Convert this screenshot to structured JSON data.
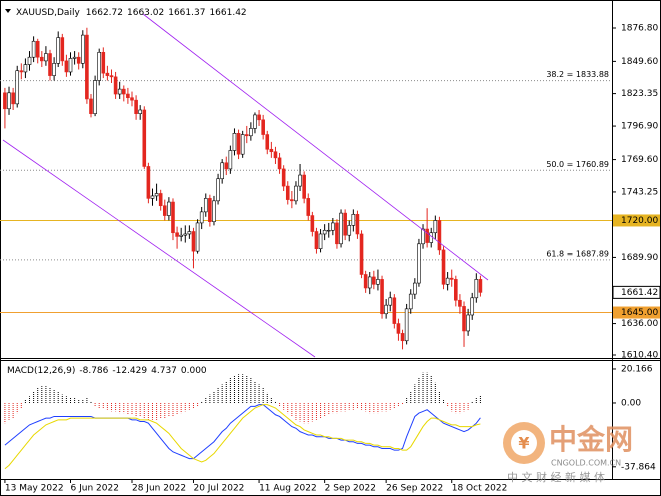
{
  "chart_data": [
    {
      "type": "candlestick",
      "title": "XAUUSD,Daily",
      "header_values": [
        1662.72,
        1663.02,
        1661.37,
        1661.42
      ],
      "open": [
        1824,
        1811,
        1824,
        1815,
        1842,
        1841,
        1847,
        1853,
        1866,
        1853,
        1850,
        1856,
        1838,
        1848,
        1869,
        1850,
        1841,
        1852,
        1853,
        1848,
        1871,
        1819,
        1807,
        1834,
        1857,
        1840,
        1838,
        1837,
        1823,
        1827,
        1823,
        1820,
        1818,
        1807,
        1810,
        1764,
        1738,
        1740,
        1742,
        1732,
        1724,
        1735,
        1710,
        1707,
        1708,
        1709,
        1711,
        1695,
        1718,
        1727,
        1738,
        1719,
        1736,
        1754,
        1767,
        1762,
        1777,
        1791,
        1774,
        1790,
        1789,
        1795,
        1806,
        1802,
        1790,
        1778,
        1776,
        1771,
        1762,
        1748,
        1737,
        1736,
        1748,
        1757,
        1738,
        1724,
        1711,
        1697,
        1709,
        1712,
        1712,
        1718,
        1701,
        1726,
        1708,
        1716,
        1725,
        1709,
        1676,
        1665,
        1674,
        1668,
        1672,
        1644,
        1651,
        1657,
        1636,
        1628,
        1622,
        1648,
        1660,
        1669,
        1701,
        1713,
        1702,
        1710,
        1720,
        1696,
        1668,
        1673,
        1672,
        1655,
        1650,
        1630,
        1643,
        1657,
        1672
      ],
      "high": [
        1828,
        1829,
        1828,
        1846,
        1848,
        1852,
        1858,
        1870,
        1868,
        1858,
        1862,
        1859,
        1853,
        1874,
        1872,
        1855,
        1857,
        1858,
        1857,
        1875,
        1877,
        1823,
        1838,
        1860,
        1861,
        1846,
        1843,
        1841,
        1833,
        1830,
        1828,
        1825,
        1822,
        1814,
        1813,
        1767,
        1746,
        1750,
        1745,
        1737,
        1739,
        1738,
        1715,
        1714,
        1716,
        1716,
        1714,
        1721,
        1731,
        1742,
        1741,
        1740,
        1758,
        1770,
        1772,
        1781,
        1795,
        1794,
        1793,
        1797,
        1800,
        1808,
        1810,
        1806,
        1793,
        1784,
        1780,
        1775,
        1765,
        1752,
        1744,
        1752,
        1766,
        1760,
        1742,
        1727,
        1714,
        1713,
        1717,
        1718,
        1722,
        1721,
        1729,
        1729,
        1720,
        1729,
        1728,
        1712,
        1679,
        1678,
        1679,
        1680,
        1675,
        1656,
        1662,
        1660,
        1640,
        1631,
        1652,
        1664,
        1673,
        1705,
        1717,
        1730,
        1714,
        1724,
        1723,
        1699,
        1678,
        1680,
        1675,
        1660,
        1654,
        1648,
        1661,
        1677,
        1675
      ],
      "low": [
        1795,
        1806,
        1810,
        1812,
        1835,
        1836,
        1842,
        1849,
        1848,
        1845,
        1846,
        1834,
        1834,
        1845,
        1846,
        1837,
        1838,
        1847,
        1843,
        1844,
        1815,
        1804,
        1805,
        1830,
        1836,
        1834,
        1832,
        1819,
        1819,
        1817,
        1815,
        1813,
        1802,
        1802,
        1762,
        1734,
        1732,
        1736,
        1728,
        1720,
        1720,
        1704,
        1697,
        1703,
        1702,
        1705,
        1681,
        1693,
        1713,
        1723,
        1715,
        1716,
        1733,
        1750,
        1757,
        1758,
        1773,
        1770,
        1771,
        1783,
        1785,
        1791,
        1797,
        1786,
        1774,
        1771,
        1766,
        1758,
        1744,
        1733,
        1730,
        1733,
        1744,
        1734,
        1720,
        1707,
        1693,
        1694,
        1704,
        1706,
        1708,
        1697,
        1698,
        1704,
        1703,
        1711,
        1705,
        1673,
        1661,
        1660,
        1664,
        1663,
        1640,
        1640,
        1646,
        1632,
        1622,
        1615,
        1619,
        1644,
        1656,
        1666,
        1697,
        1698,
        1698,
        1705,
        1692,
        1664,
        1663,
        1666,
        1650,
        1644,
        1617,
        1626,
        1639,
        1653,
        1658
      ],
      "close": [
        1811,
        1824,
        1815,
        1842,
        1841,
        1847,
        1853,
        1866,
        1853,
        1850,
        1856,
        1838,
        1848,
        1869,
        1850,
        1841,
        1852,
        1853,
        1848,
        1871,
        1819,
        1807,
        1834,
        1857,
        1840,
        1838,
        1837,
        1823,
        1827,
        1823,
        1820,
        1818,
        1807,
        1810,
        1764,
        1738,
        1740,
        1742,
        1732,
        1724,
        1735,
        1710,
        1707,
        1708,
        1709,
        1711,
        1695,
        1718,
        1727,
        1738,
        1719,
        1736,
        1754,
        1767,
        1762,
        1777,
        1791,
        1774,
        1790,
        1789,
        1795,
        1806,
        1802,
        1790,
        1778,
        1776,
        1771,
        1762,
        1748,
        1737,
        1736,
        1748,
        1757,
        1738,
        1724,
        1711,
        1697,
        1709,
        1712,
        1712,
        1718,
        1701,
        1726,
        1708,
        1716,
        1725,
        1709,
        1676,
        1665,
        1674,
        1668,
        1672,
        1644,
        1651,
        1657,
        1636,
        1628,
        1622,
        1648,
        1660,
        1669,
        1701,
        1713,
        1702,
        1710,
        1720,
        1696,
        1668,
        1673,
        1672,
        1655,
        1650,
        1630,
        1643,
        1657,
        1672,
        1661.42
      ],
      "up_fill": "#ffffff",
      "up_stroke": "#000000",
      "down_color": "#e3261f",
      "xlim": [
        -1.2,
        148.1
      ],
      "xticks": [
        {
          "value": 0,
          "label": "13 May 2022"
        },
        {
          "value": 16,
          "label": "6 Jun 2022"
        },
        {
          "value": 31,
          "label": "28 Jun 2022"
        },
        {
          "value": 46,
          "label": "20 Jul 2022"
        },
        {
          "value": 62,
          "label": "11 Aug 2022"
        },
        {
          "value": 78,
          "label": "2 Sep 2022"
        },
        {
          "value": 93,
          "label": "26 Sep 2022"
        },
        {
          "value": 109,
          "label": "18 Oct 2022"
        }
      ],
      "ylim": [
        1610.4,
        1888.2
      ],
      "yticks": [
        {
          "value": 1876.8,
          "label": "1876.80"
        },
        {
          "value": 1849.6,
          "label": "1849.60"
        },
        {
          "value": 1823.35,
          "label": "1823.35"
        },
        {
          "value": 1796.9,
          "label": "1796.90"
        },
        {
          "value": 1769.6,
          "label": "1769.60"
        },
        {
          "value": 1743.25,
          "label": "1743.25"
        },
        {
          "value": 1689.9,
          "label": "1689.90"
        },
        {
          "value": 1636,
          "label": "1636.00"
        },
        {
          "value": 1610.4,
          "label": "1610.40"
        }
      ],
      "fib_levels": [
        {
          "value": 1833.88,
          "label": "38.2 = 1833.88"
        },
        {
          "value": 1760.89,
          "label": "50.0 = 1760.89"
        },
        {
          "value": 1687.89,
          "label": "61.8 = 1687.89"
        }
      ],
      "fib_color": "#8c8c8c",
      "price_levels": [
        {
          "value": 1720,
          "label": "1720.00",
          "color": "#e6b422"
        },
        {
          "value": 1645,
          "label": "1645.00",
          "color": "#f0a030"
        }
      ],
      "current_price": 1661.42
    },
    {
      "type": "macd",
      "title": "MACD(12,26,9)",
      "header_values": [
        -8.786,
        -12.429,
        4.737,
        {
          "value": 0,
          "label": "0.000"
        }
      ],
      "histogram": {
        "up_color": "#000000",
        "down_color": "#e3261f",
        "values": [
          -12,
          -10,
          -9,
          -6,
          -3,
          2,
          4,
          7,
          9,
          10,
          10,
          9,
          8,
          7,
          5,
          4,
          3,
          3,
          2,
          2,
          3,
          1,
          -2,
          -3,
          -3,
          -4,
          -5,
          -5,
          -6,
          -6,
          -7,
          -7,
          -8,
          -8,
          -9,
          -10,
          -10,
          -10,
          -9,
          -9,
          -8,
          -8,
          -7,
          -6,
          -5,
          -4,
          -3,
          -2,
          1,
          3,
          5,
          7,
          9,
          11,
          13,
          15,
          16,
          17,
          17,
          16,
          15,
          13,
          11,
          9,
          6,
          3,
          1,
          -2,
          -4,
          -6,
          -8,
          -10,
          -11,
          -12,
          -12,
          -11,
          -10,
          -9,
          -8,
          -7,
          -6,
          -6,
          -5,
          -5,
          -4,
          -4,
          -3,
          -4,
          -5,
          -6,
          -6,
          -6,
          -5,
          -5,
          -4,
          -3,
          -2,
          -1,
          3,
          7,
          11,
          15,
          18,
          18,
          16,
          12,
          7,
          2,
          -2,
          -5,
          -6,
          -6,
          -5,
          -4,
          1,
          3,
          4.737
        ]
      },
      "lines": [
        {
          "color": "#1f3fff",
          "values": [
            -25,
            -23,
            -21,
            -19,
            -17,
            -15,
            -13,
            -12,
            -11,
            -10,
            -9,
            -9,
            -8,
            -8,
            -8,
            -8,
            -8,
            -8,
            -8,
            -8,
            -8,
            -8,
            -9,
            -9,
            -9,
            -9,
            -9,
            -9,
            -9,
            -9,
            -9,
            -10,
            -10,
            -11,
            -11,
            -12,
            -15,
            -18,
            -21,
            -24,
            -27,
            -29,
            -30,
            -31,
            -32,
            -33,
            -33,
            -31,
            -29,
            -27,
            -25,
            -23,
            -20,
            -17,
            -15,
            -12,
            -10,
            -8,
            -6,
            -4,
            -2,
            -2,
            -1,
            -1,
            -3,
            -5,
            -7,
            -8,
            -10,
            -12,
            -14,
            -15,
            -17,
            -18,
            -19,
            -19,
            -20,
            -20,
            -20,
            -21,
            -21,
            -21,
            -22,
            -22,
            -23,
            -23,
            -24,
            -24,
            -25,
            -25,
            -26,
            -26,
            -27,
            -27,
            -27,
            -28,
            -28,
            -27,
            -20,
            -14,
            -8,
            -6,
            -5,
            -4,
            -6,
            -8,
            -10,
            -12,
            -13,
            -14,
            -15,
            -16,
            -17,
            -16,
            -14,
            -12,
            -8.786
          ]
        },
        {
          "color": "#e8d800",
          "values": [
            -39,
            -37,
            -34,
            -31,
            -28,
            -25,
            -22,
            -19,
            -17,
            -15,
            -13,
            -12,
            -11,
            -10,
            -10,
            -10,
            -9,
            -9,
            -9,
            -9,
            -9,
            -9,
            -9,
            -9,
            -9,
            -9,
            -9,
            -9,
            -9,
            -9,
            -9,
            -9,
            -9,
            -10,
            -10,
            -10,
            -11,
            -12,
            -14,
            -16,
            -18,
            -21,
            -24,
            -27,
            -29,
            -31,
            -33,
            -34,
            -35,
            -34,
            -32,
            -30,
            -27,
            -24,
            -21,
            -18,
            -15,
            -12,
            -9,
            -7,
            -5,
            -3,
            -2,
            -1,
            -1,
            -2,
            -3,
            -5,
            -7,
            -9,
            -11,
            -13,
            -14,
            -16,
            -17,
            -18,
            -19,
            -19,
            -20,
            -20,
            -21,
            -21,
            -21,
            -22,
            -22,
            -22,
            -23,
            -23,
            -24,
            -24,
            -25,
            -25,
            -26,
            -26,
            -26,
            -27,
            -27,
            -28,
            -28,
            -26,
            -22,
            -18,
            -14,
            -11,
            -9,
            -9,
            -10,
            -11,
            -12,
            -13,
            -13,
            -14,
            -14,
            -14,
            -14,
            -13,
            -12.429
          ]
        }
      ],
      "ylim": [
        -44.5,
        24.3
      ],
      "yticks": [
        20.166,
        {
          "value": 0,
          "label": "0.00"
        },
        -37.864
      ]
    }
  ],
  "watermark": {
    "name": "中金网",
    "site": "CNGOLD.COM.CN",
    "slogan": "中 文 财 经 新 媒 体"
  }
}
